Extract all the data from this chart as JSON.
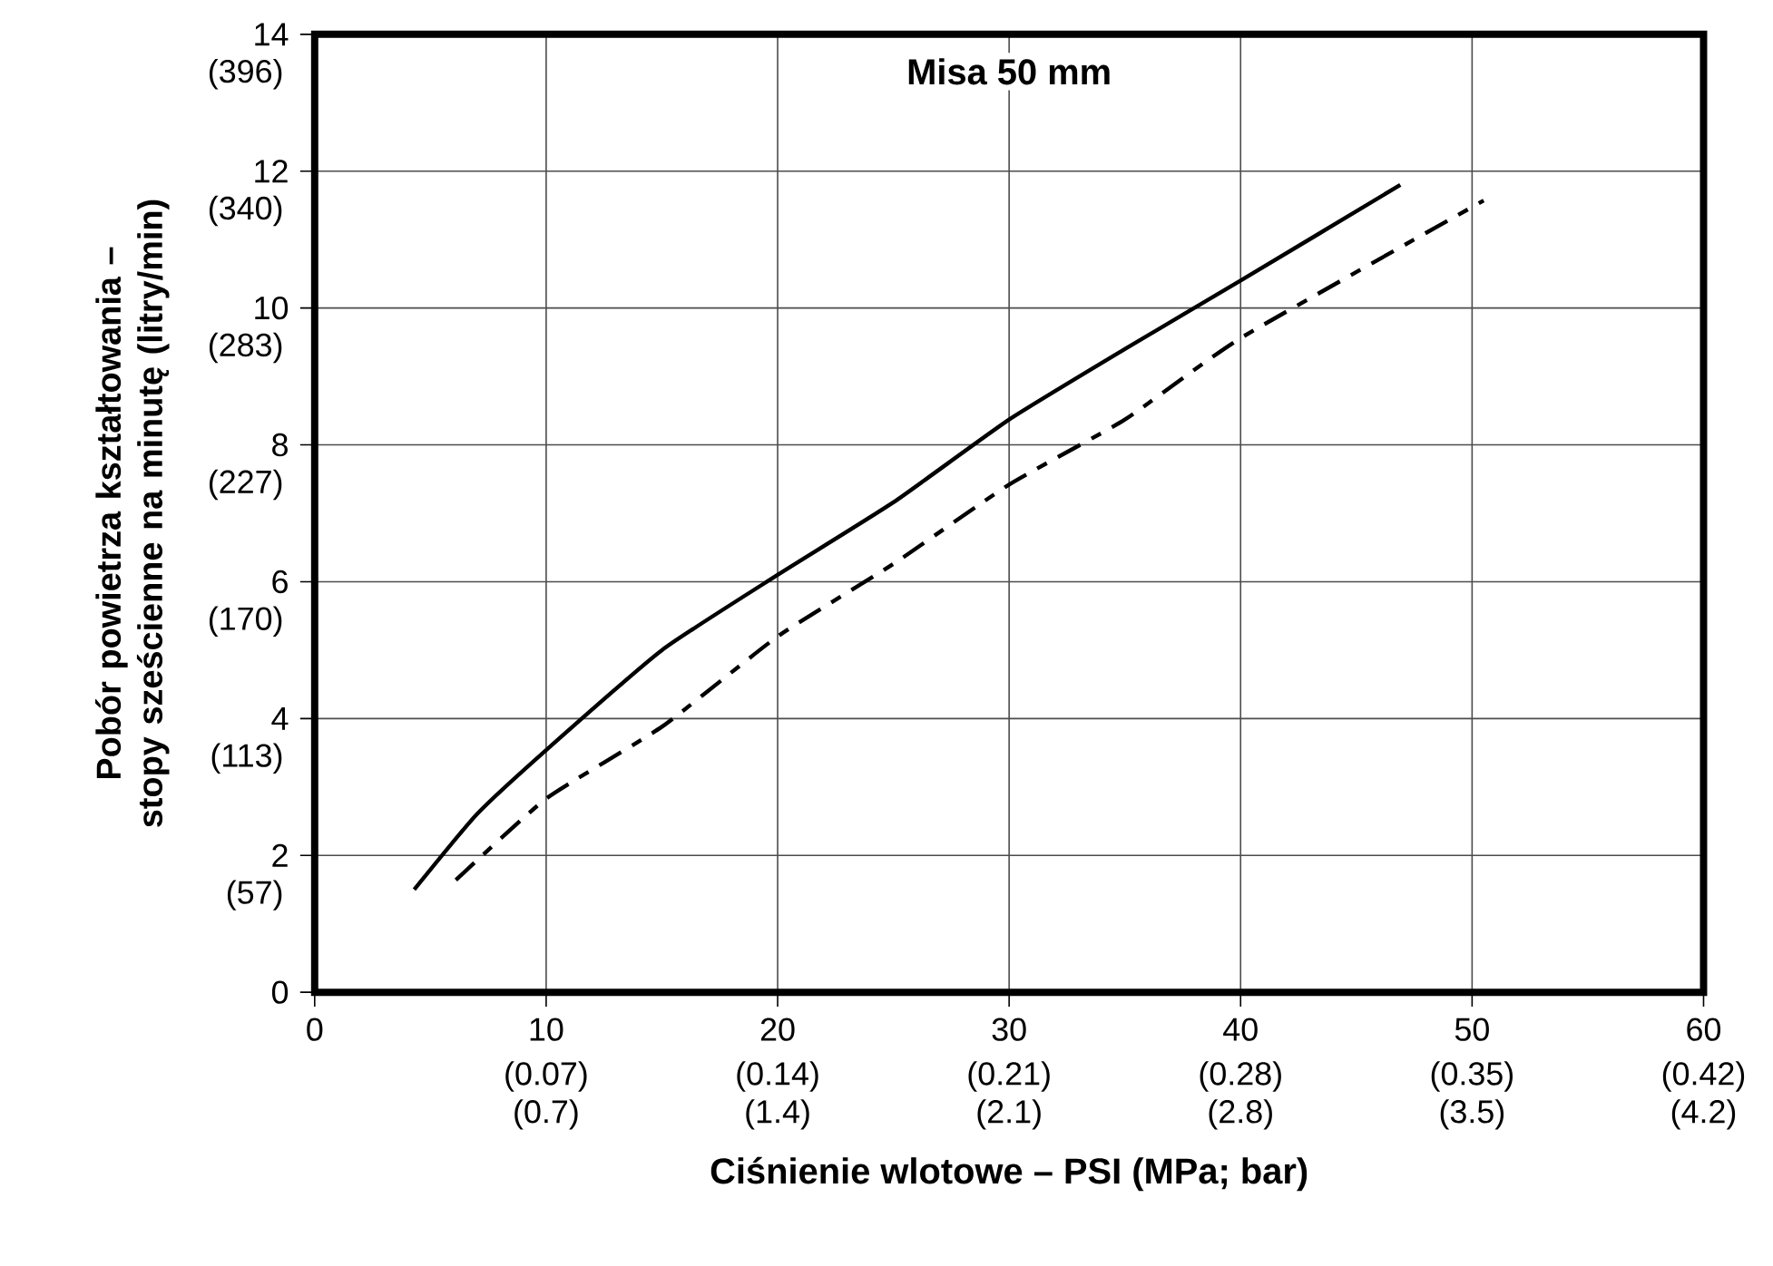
{
  "chart_data": {
    "type": "line",
    "title": "Misa 50 mm",
    "xlabel": "Ciśnienie wlotowe – PSI (MPa; bar)",
    "ylabel": "Pobór powietrza kształtowania – stopy sześcienne na minutę (litry/min)",
    "xlim": [
      0,
      60
    ],
    "ylim": [
      0,
      14
    ],
    "xticks": [
      0,
      10,
      20,
      30,
      40,
      50,
      60
    ],
    "yticks": [
      0,
      2,
      4,
      6,
      8,
      10,
      12,
      14
    ],
    "annotations": [
      "(0.07) (0.7)",
      "(0.14) (1.4)",
      "(0.21) (2.1)",
      "(0.28) (2.8)",
      "(0.35) (3.5)",
      "(0.42) (4.2)",
      "(57)",
      "(113)",
      "(170)",
      "(227)",
      "(283)",
      "(340)",
      "(396)"
    ],
    "grid": true,
    "series": [
      {
        "color": "#000000",
        "line_style": "solid",
        "x": [
          4.3,
          7,
          10,
          15,
          20,
          25,
          30,
          35,
          40,
          46.9
        ],
        "values": [
          1.5,
          2.6,
          3.54,
          5.0,
          6.1,
          7.16,
          8.37,
          9.4,
          10.4,
          11.8
        ]
      },
      {
        "color": "#000000",
        "line_style": "dashed",
        "x": [
          6.1,
          10,
          15,
          20,
          25,
          30,
          35,
          40,
          50.5
        ],
        "values": [
          1.64,
          2.83,
          3.88,
          5.2,
          6.26,
          7.42,
          8.37,
          9.56,
          11.57
        ]
      }
    ]
  }
}
